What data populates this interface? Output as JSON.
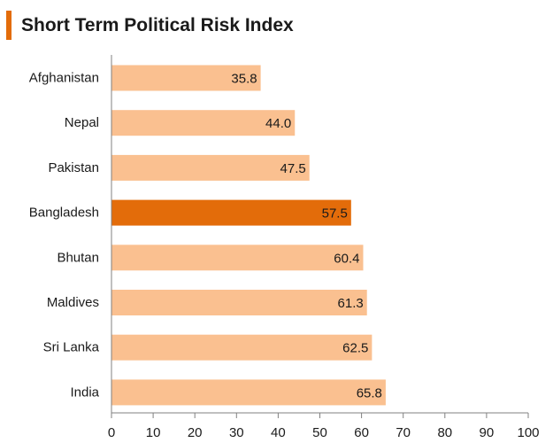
{
  "title": "Short Term Political Risk Index",
  "colors": {
    "accent": "#E36C0A",
    "bar": "#FAC090",
    "highlight": "#E36C0A",
    "axis": "#808080",
    "text": "#1a1a1a"
  },
  "chart_data": {
    "type": "bar",
    "orientation": "horizontal",
    "title": "Short Term Political Risk Index",
    "categories": [
      "Afghanistan",
      "Nepal",
      "Pakistan",
      "Bangladesh",
      "Bhutan",
      "Maldives",
      "Sri Lanka",
      "India"
    ],
    "values": [
      35.8,
      44.0,
      47.5,
      57.5,
      60.4,
      61.3,
      62.5,
      65.8
    ],
    "data_labels": [
      "35.8",
      "44.0",
      "47.5",
      "57.5",
      "60.4",
      "61.3",
      "62.5",
      "65.8"
    ],
    "highlight_category": "Bangladesh",
    "xlim": [
      0,
      100
    ],
    "xticks": [
      0,
      10,
      20,
      30,
      40,
      50,
      60,
      70,
      80,
      90,
      100
    ],
    "xtick_labels": [
      "0",
      "10",
      "20",
      "30",
      "40",
      "50",
      "60",
      "70",
      "80",
      "90",
      "100"
    ],
    "xlabel": "",
    "ylabel": "",
    "grid": false,
    "legend": "none"
  }
}
